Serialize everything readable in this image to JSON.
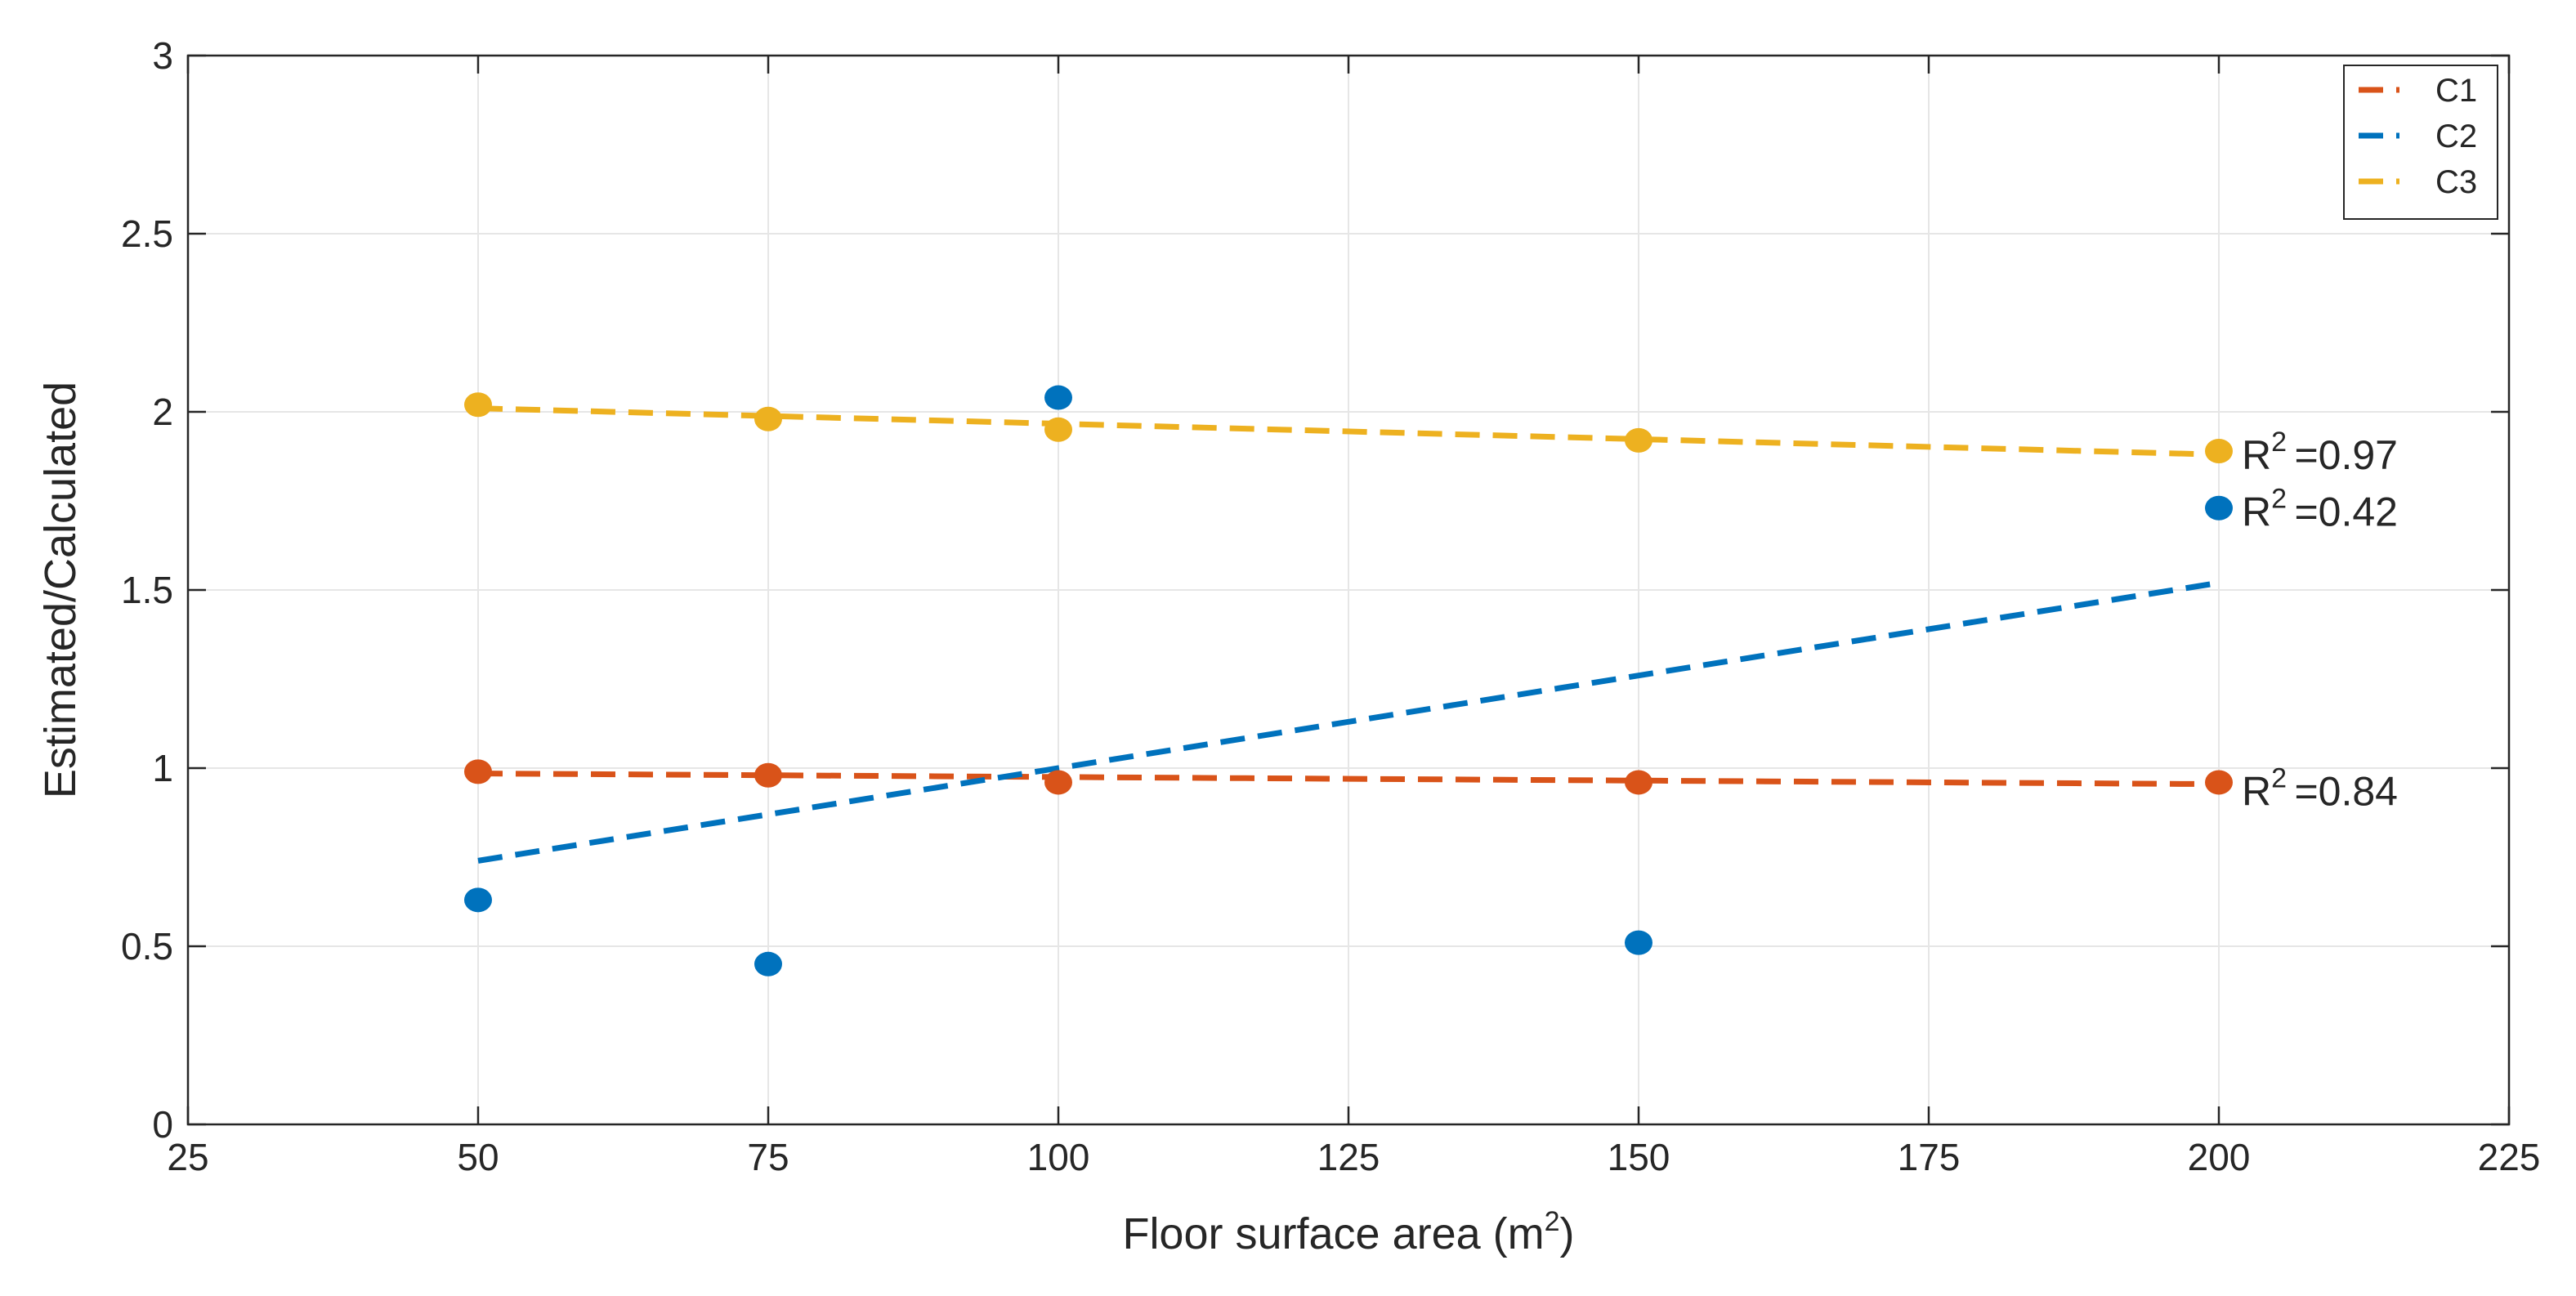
{
  "chart_data": {
    "type": "scatter",
    "title": "",
    "xlabel": "Floor surface area (m",
    "xlabel_sup": "2",
    "xlabel_suffix": ")",
    "ylabel": "Estimated/Calculated",
    "xlim": [
      25,
      225
    ],
    "ylim": [
      0,
      3
    ],
    "xticks": [
      25,
      50,
      75,
      100,
      125,
      150,
      175,
      200,
      225
    ],
    "yticks": [
      0,
      0.5,
      1,
      1.5,
      2,
      2.5,
      3
    ],
    "grid": true,
    "legend_position": "top-right",
    "series": [
      {
        "name": "C1",
        "color": "#D95319",
        "points": [
          [
            50,
            0.99
          ],
          [
            75,
            0.98
          ],
          [
            100,
            0.96
          ],
          [
            150,
            0.96
          ],
          [
            200,
            0.96
          ]
        ],
        "trend": [
          [
            50,
            0.985
          ],
          [
            200,
            0.955
          ]
        ],
        "r2_label": "=0.84",
        "r2_anchor": [
          200,
          0.96
        ]
      },
      {
        "name": "C2",
        "color": "#0072BD",
        "points": [
          [
            50,
            0.63
          ],
          [
            75,
            0.45
          ],
          [
            100,
            2.04
          ],
          [
            150,
            0.51
          ],
          [
            200,
            1.73
          ]
        ],
        "trend": [
          [
            50,
            0.74
          ],
          [
            200,
            1.52
          ]
        ],
        "r2_label": "=0.42",
        "r2_anchor": [
          200,
          1.73
        ]
      },
      {
        "name": "C3",
        "color": "#EDB120",
        "points": [
          [
            50,
            2.02
          ],
          [
            75,
            1.98
          ],
          [
            100,
            1.95
          ],
          [
            150,
            1.92
          ],
          [
            200,
            1.89
          ]
        ],
        "trend": [
          [
            50,
            2.01
          ],
          [
            200,
            1.88
          ]
        ],
        "r2_label": "=0.97",
        "r2_anchor": [
          200,
          1.89
        ]
      }
    ],
    "r2_prefix": "R",
    "r2_sup": "2"
  }
}
